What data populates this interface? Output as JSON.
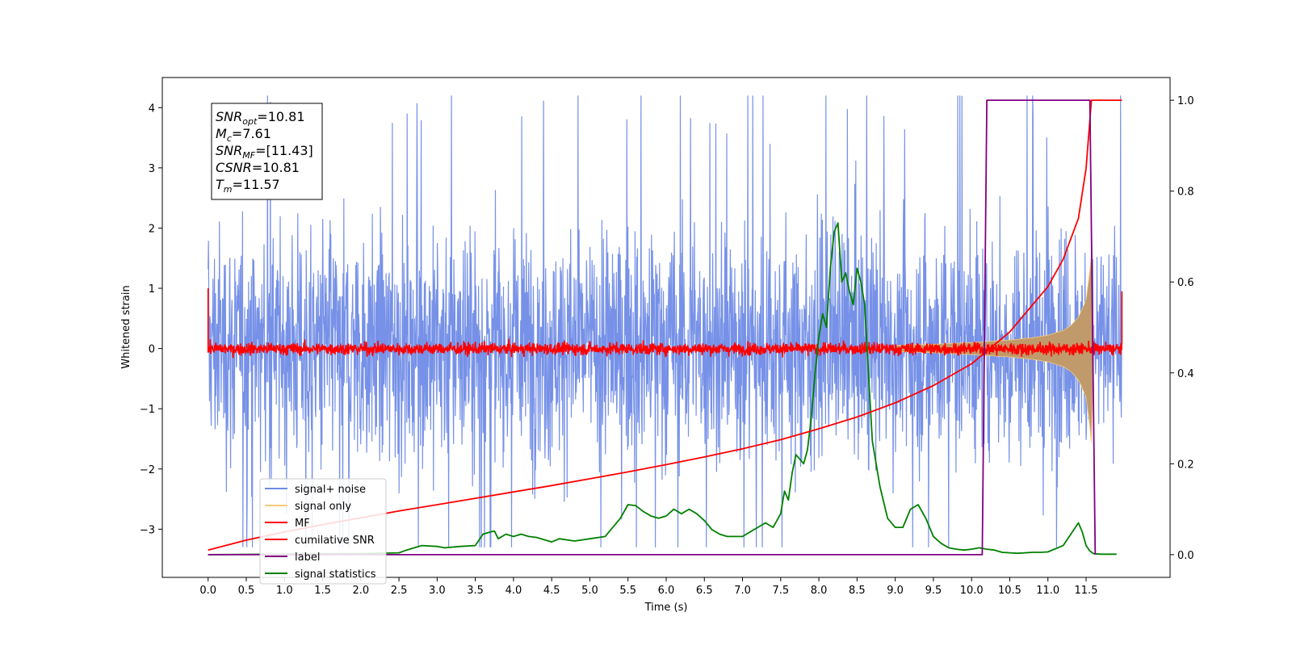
{
  "chart_data": {
    "type": "line",
    "xlabel": "Time (s)",
    "ylabel_left": "Whitened strain",
    "ylabel_right": "",
    "xlim": [
      -0.6,
      12.6
    ],
    "ylim_left": [
      -3.8,
      4.5
    ],
    "ylim_right": [
      -0.05,
      1.05
    ],
    "x_ticks": [
      0.0,
      0.5,
      1.0,
      1.5,
      2.0,
      2.5,
      3.0,
      3.5,
      4.0,
      4.5,
      5.0,
      5.5,
      6.0,
      6.5,
      7.0,
      7.5,
      8.0,
      8.5,
      9.0,
      9.5,
      10.0,
      10.5,
      11.0,
      11.5
    ],
    "x_tick_labels": [
      "0.0",
      "0.5",
      "1.0",
      "1.5",
      "2.0",
      "2.5",
      "3.0",
      "3.5",
      "4.0",
      "4.5",
      "5.0",
      "5.5",
      "6.0",
      "6.5",
      "7.0",
      "7.5",
      "8.0",
      "8.5",
      "9.0",
      "9.5",
      "10.0",
      "10.5",
      "11.0",
      "11.5"
    ],
    "y_left_ticks": [
      -3,
      -2,
      -1,
      0,
      1,
      2,
      3,
      4
    ],
    "y_left_tick_labels": [
      "−3",
      "−2",
      "−1",
      "0",
      "1",
      "2",
      "3",
      "4"
    ],
    "y_right_ticks": [
      0.0,
      0.2,
      0.4,
      0.6,
      0.8,
      1.0
    ],
    "y_right_tick_labels": [
      "0.0",
      "0.2",
      "0.4",
      "0.6",
      "0.8",
      "1.0"
    ],
    "grid": false,
    "legend_position": "lower-left",
    "series": [
      {
        "name": "signal+ noise",
        "axis": "left",
        "color": "#6f8be6",
        "kind": "noise_band",
        "x_range": [
          0.0,
          11.97
        ],
        "typical_range": [
          -1.6,
          1.7
        ],
        "peak_range": [
          -3.3,
          4.2
        ]
      },
      {
        "name": "signal only",
        "axis": "left",
        "color": "#f5c97a",
        "kind": "chirp_envelope",
        "x": [
          9.0,
          9.5,
          10.0,
          10.5,
          10.8,
          11.0,
          11.2,
          11.3,
          11.4,
          11.5,
          11.55,
          11.57,
          11.6
        ],
        "amplitude": [
          0.05,
          0.07,
          0.1,
          0.14,
          0.18,
          0.22,
          0.3,
          0.38,
          0.52,
          0.8,
          1.3,
          1.6,
          0.0
        ]
      },
      {
        "name": "MF",
        "axis": "left",
        "color": "#ff0000",
        "kind": "noise_band",
        "x_range": [
          0.0,
          11.97
        ],
        "typical_range": [
          -0.1,
          0.15
        ],
        "peak_range": [
          -0.2,
          0.25
        ],
        "edge_values": [
          1.0,
          0.95
        ]
      },
      {
        "name": "cumilative SNR",
        "axis": "right",
        "color": "#ff0000",
        "kind": "line",
        "x": [
          0.0,
          0.5,
          1.0,
          1.5,
          2.0,
          2.5,
          3.0,
          3.5,
          4.0,
          4.5,
          5.0,
          5.5,
          6.0,
          6.5,
          7.0,
          7.5,
          8.0,
          8.5,
          9.0,
          9.5,
          10.0,
          10.5,
          11.0,
          11.2,
          11.4,
          11.5,
          11.57,
          11.97
        ],
        "y": [
          0.01,
          0.032,
          0.05,
          0.066,
          0.081,
          0.096,
          0.11,
          0.124,
          0.138,
          0.152,
          0.167,
          0.182,
          0.198,
          0.215,
          0.233,
          0.253,
          0.277,
          0.303,
          0.334,
          0.372,
          0.42,
          0.49,
          0.59,
          0.65,
          0.74,
          0.85,
          1.0,
          1.0
        ]
      },
      {
        "name": "label",
        "axis": "right",
        "color": "#800080",
        "kind": "step",
        "x": [
          0.0,
          10.14,
          10.2,
          11.55,
          11.62,
          11.62
        ],
        "y": [
          0.0,
          0.0,
          1.0,
          1.0,
          0.0,
          0.0
        ]
      },
      {
        "name": "signal statistics",
        "axis": "right",
        "color": "#008000",
        "kind": "line",
        "x": [
          0.0,
          1.0,
          2.0,
          2.5,
          2.6,
          2.8,
          3.0,
          3.1,
          3.3,
          3.5,
          3.6,
          3.7,
          3.75,
          3.8,
          3.9,
          4.0,
          4.1,
          4.2,
          4.3,
          4.5,
          4.6,
          4.8,
          5.0,
          5.2,
          5.3,
          5.4,
          5.5,
          5.6,
          5.7,
          5.8,
          5.9,
          6.0,
          6.1,
          6.2,
          6.3,
          6.4,
          6.5,
          6.6,
          6.7,
          6.8,
          7.0,
          7.1,
          7.2,
          7.3,
          7.4,
          7.5,
          7.55,
          7.6,
          7.65,
          7.7,
          7.75,
          7.8,
          7.85,
          7.9,
          7.95,
          8.0,
          8.05,
          8.1,
          8.15,
          8.2,
          8.25,
          8.3,
          8.35,
          8.4,
          8.45,
          8.5,
          8.55,
          8.6,
          8.65,
          8.7,
          8.8,
          8.9,
          9.0,
          9.1,
          9.2,
          9.3,
          9.4,
          9.5,
          9.6,
          9.7,
          9.8,
          9.9,
          10.0,
          10.1,
          10.2,
          10.3,
          10.4,
          10.5,
          10.6,
          10.7,
          10.8,
          10.9,
          11.0,
          11.2,
          11.3,
          11.4,
          11.45,
          11.5,
          11.55,
          11.6,
          11.7,
          11.8,
          11.9
        ],
        "y": [
          0.0,
          0.001,
          0.002,
          0.004,
          0.01,
          0.02,
          0.018,
          0.015,
          0.018,
          0.02,
          0.045,
          0.05,
          0.052,
          0.035,
          0.045,
          0.04,
          0.045,
          0.04,
          0.038,
          0.028,
          0.035,
          0.03,
          0.035,
          0.04,
          0.06,
          0.08,
          0.11,
          0.108,
          0.095,
          0.085,
          0.08,
          0.085,
          0.1,
          0.09,
          0.1,
          0.09,
          0.075,
          0.055,
          0.045,
          0.04,
          0.04,
          0.05,
          0.06,
          0.07,
          0.06,
          0.09,
          0.14,
          0.12,
          0.18,
          0.22,
          0.21,
          0.2,
          0.23,
          0.3,
          0.4,
          0.48,
          0.53,
          0.5,
          0.63,
          0.71,
          0.73,
          0.6,
          0.62,
          0.58,
          0.55,
          0.63,
          0.6,
          0.55,
          0.4,
          0.25,
          0.15,
          0.08,
          0.06,
          0.06,
          0.1,
          0.11,
          0.08,
          0.04,
          0.025,
          0.015,
          0.012,
          0.01,
          0.012,
          0.015,
          0.012,
          0.01,
          0.005,
          0.004,
          0.003,
          0.004,
          0.005,
          0.005,
          0.006,
          0.02,
          0.045,
          0.07,
          0.05,
          0.02,
          0.008,
          0.002,
          0.001,
          0.001,
          0.001
        ]
      }
    ],
    "annotation": {
      "lines": [
        {
          "symbol": "SNR",
          "subscript": "opt",
          "value": "=10.81"
        },
        {
          "symbol": "M",
          "subscript": "c",
          "value": "=7.61"
        },
        {
          "symbol": "SNR",
          "subscript": "MF",
          "value": "=[11.43]"
        },
        {
          "symbol": "CSNR",
          "subscript": "",
          "value": "=10.81"
        },
        {
          "symbol": "T",
          "subscript": "m",
          "value": "=11.57"
        }
      ]
    }
  }
}
